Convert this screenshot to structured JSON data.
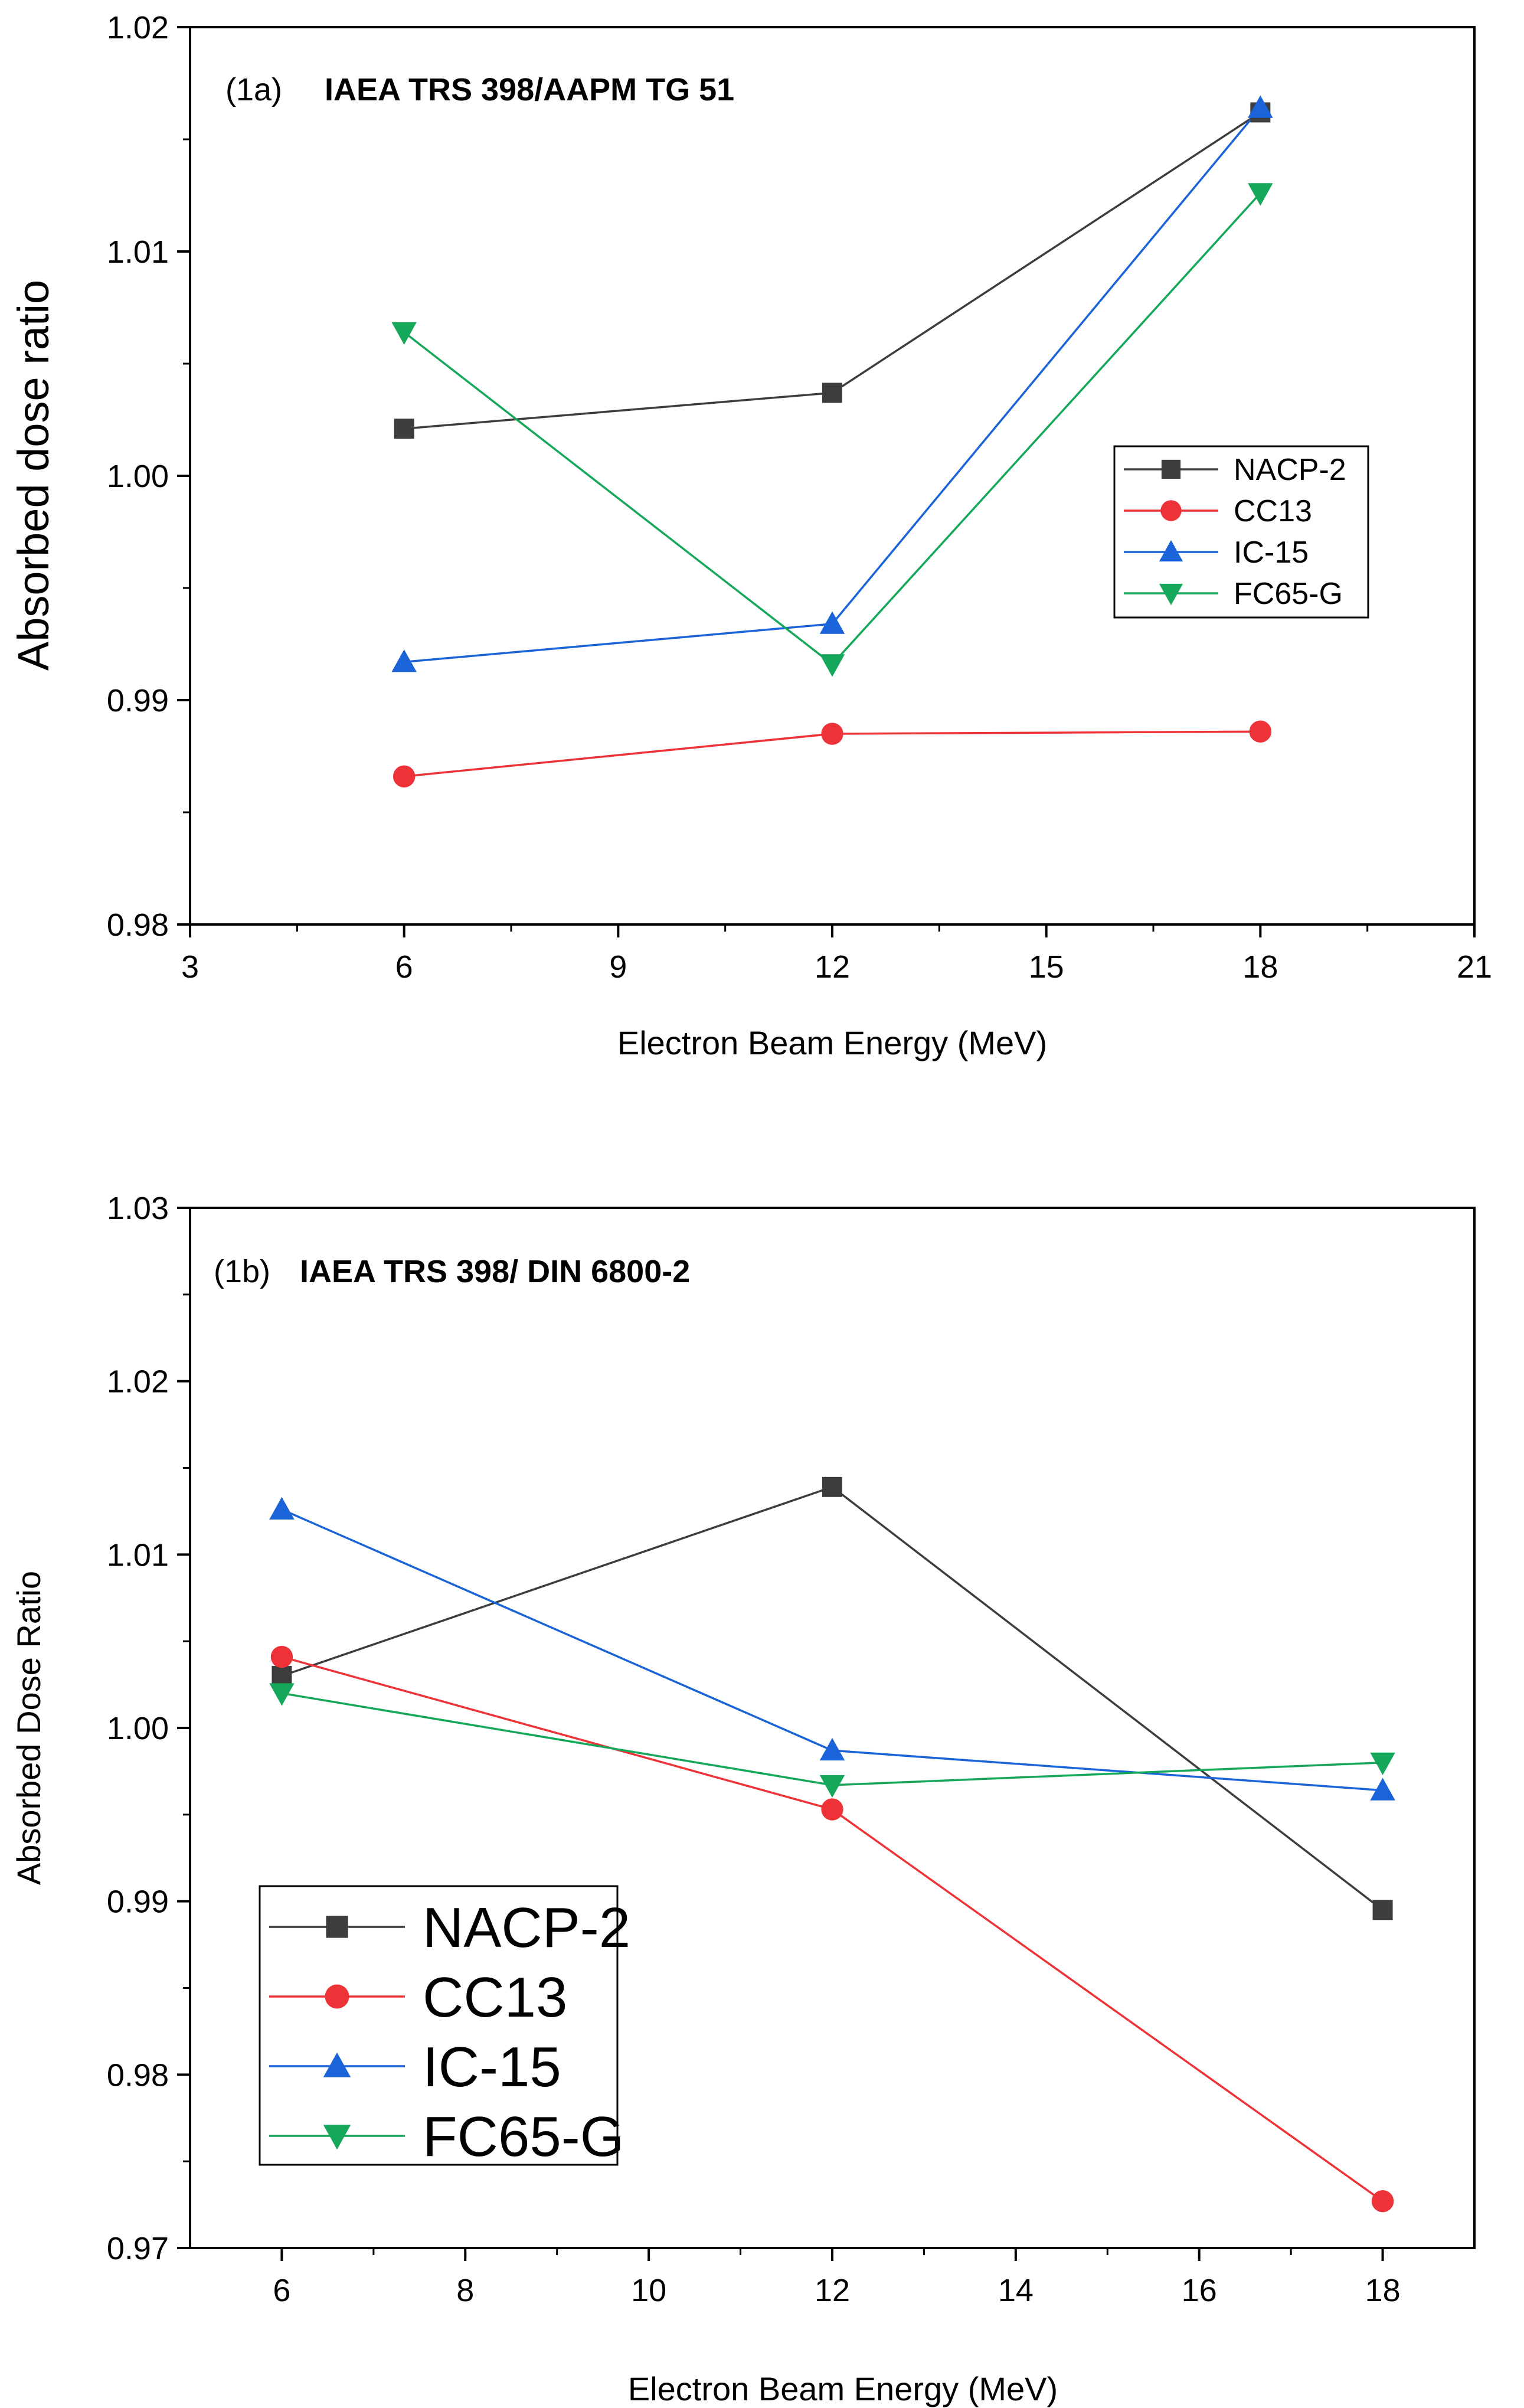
{
  "chart_data": [
    {
      "type": "line",
      "panel_label": "(1a)",
      "title": "IAEA TRS 398/AAPM TG 51",
      "xlabel": "Electron Beam Energy (MeV)",
      "ylabel": "Absorbed dose ratio",
      "xlim": [
        3,
        21
      ],
      "ylim": [
        0.98,
        1.02
      ],
      "xticks": [
        3,
        6,
        9,
        12,
        15,
        18,
        21
      ],
      "xtick_labels": [
        "3",
        "6",
        "9",
        "12",
        "15",
        "18",
        "21"
      ],
      "yticks": [
        0.98,
        0.99,
        1.0,
        1.01,
        1.02
      ],
      "ytick_labels": [
        "0.98",
        "0.99",
        "1.00",
        "1.01",
        "1.02"
      ],
      "x": [
        6,
        12,
        18
      ],
      "legend_position": "middle-right",
      "series": [
        {
          "name": "NACP-2",
          "marker": "square",
          "color": "#3d3d3d",
          "values": [
            1.0021,
            1.0037,
            1.0162
          ]
        },
        {
          "name": "CC13",
          "marker": "circle",
          "color": "#ee3338",
          "values": [
            0.9866,
            0.9885,
            0.9886
          ]
        },
        {
          "name": "IC-15",
          "marker": "triangle-up",
          "color": "#1a63d8",
          "values": [
            0.9917,
            0.9934,
            1.0164
          ]
        },
        {
          "name": "FC65-G",
          "marker": "triangle-down",
          "color": "#16a85a",
          "values": [
            1.0064,
            0.9916,
            1.0126
          ]
        }
      ]
    },
    {
      "type": "line",
      "panel_label": "(1b)",
      "title": "IAEA TRS 398/ DIN 6800-2",
      "xlabel": "Electron Beam Energy (MeV)",
      "ylabel": "Absorbed Dose Ratio",
      "xlim": [
        5,
        19
      ],
      "ylim": [
        0.97,
        1.03
      ],
      "xticks": [
        6,
        8,
        10,
        12,
        14,
        16,
        18
      ],
      "xtick_labels": [
        "6",
        "8",
        "10",
        "12",
        "14",
        "16",
        "18"
      ],
      "yticks": [
        0.97,
        0.98,
        0.99,
        1.0,
        1.01,
        1.02,
        1.03
      ],
      "ytick_labels": [
        "0.97",
        "0.98",
        "0.99",
        "1.00",
        "1.01",
        "1.02",
        "1.03"
      ],
      "x": [
        6,
        12,
        18
      ],
      "legend_position": "bottom-left",
      "series": [
        {
          "name": "NACP-2",
          "marker": "square",
          "color": "#3d3d3d",
          "values": [
            1.003,
            1.0139,
            0.9895
          ]
        },
        {
          "name": "CC13",
          "marker": "circle",
          "color": "#ee3338",
          "values": [
            1.0041,
            0.9953,
            0.9727
          ]
        },
        {
          "name": "IC-15",
          "marker": "triangle-up",
          "color": "#1a63d8",
          "values": [
            1.0126,
            0.9987,
            0.9964
          ]
        },
        {
          "name": "FC65-G",
          "marker": "triangle-down",
          "color": "#16a85a",
          "values": [
            1.002,
            0.9967,
            0.998
          ]
        }
      ]
    }
  ]
}
